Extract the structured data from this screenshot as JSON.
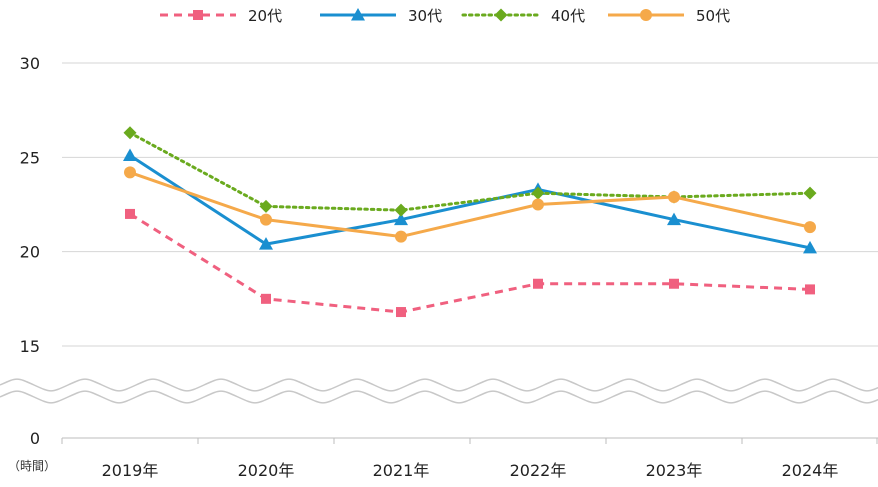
{
  "chart_data": {
    "type": "line",
    "categories": [
      "2019年",
      "2020年",
      "2021年",
      "2022年",
      "2023年",
      "2024年"
    ],
    "series": [
      {
        "name": "20代",
        "values": [
          22.0,
          17.5,
          16.8,
          18.3,
          18.3,
          18.0
        ],
        "color": "#f0607f",
        "dash": "dashed",
        "marker": "square"
      },
      {
        "name": "30代",
        "values": [
          25.1,
          20.4,
          21.7,
          23.3,
          21.7,
          20.2
        ],
        "color": "#1a8fd0",
        "dash": "solid",
        "marker": "triangle"
      },
      {
        "name": "40代",
        "values": [
          26.3,
          22.4,
          22.2,
          23.1,
          22.9,
          23.1
        ],
        "color": "#6aaa1e",
        "dash": "dotted",
        "marker": "diamond"
      },
      {
        "name": "50代",
        "values": [
          24.2,
          21.7,
          20.8,
          22.5,
          22.9,
          21.3
        ],
        "color": "#f5a94a",
        "dash": "solid",
        "marker": "circle"
      }
    ],
    "yticks": [
      "30",
      "25",
      "20",
      "15",
      "0"
    ],
    "ylim": [
      15,
      30
    ],
    "axis_break": "between 0 and 15",
    "y_unit": "（時間）",
    "legend_position": "top",
    "grid": "horizontal"
  }
}
